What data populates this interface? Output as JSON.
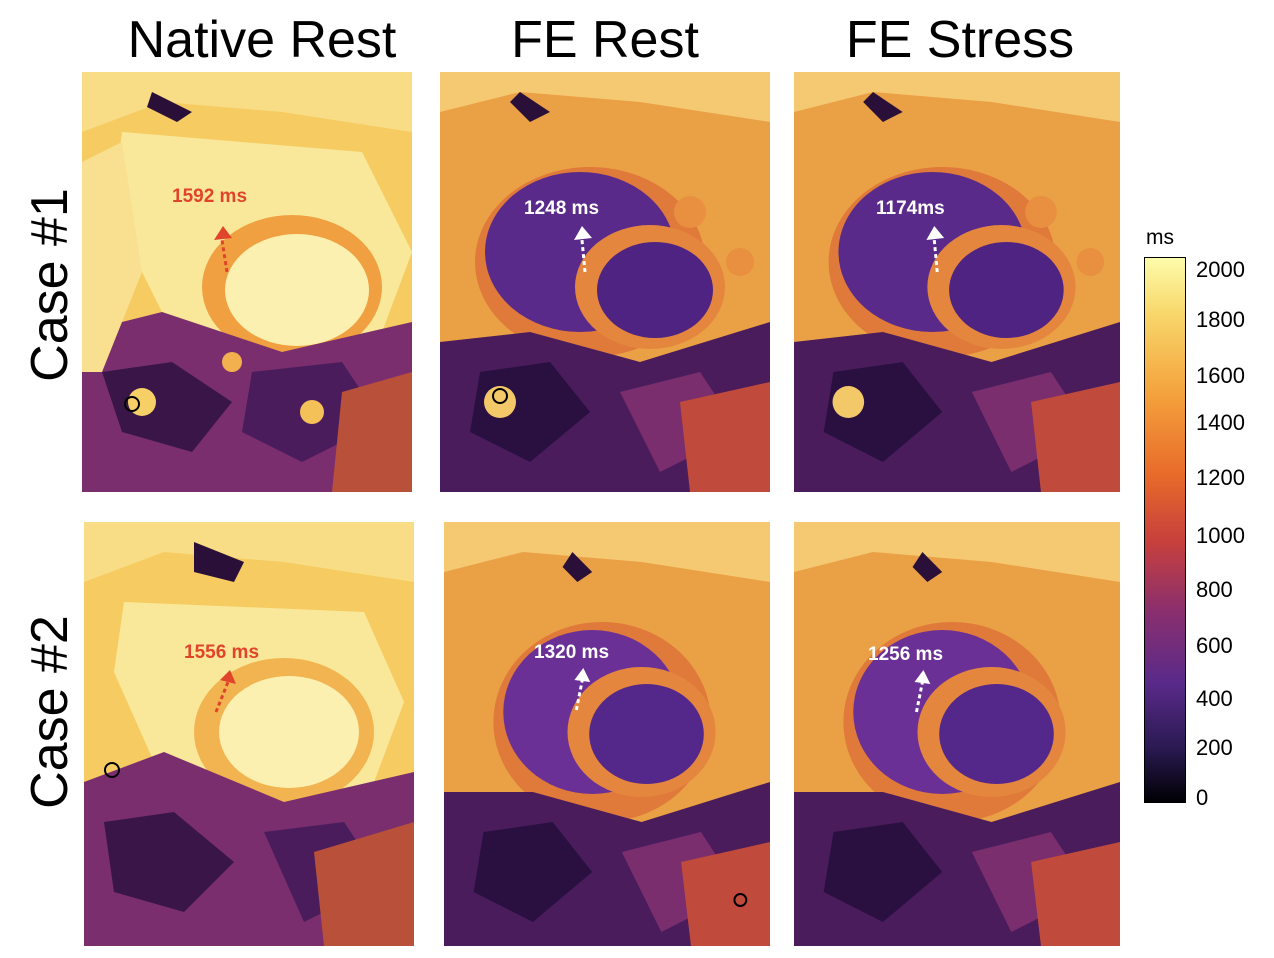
{
  "columns": [
    "Native Rest",
    "FE Rest",
    "FE Stress"
  ],
  "rows": [
    "Case #1",
    "Case #2"
  ],
  "measurements": {
    "case1": {
      "native_rest": "1592 ms",
      "fe_rest": "1248 ms",
      "fe_stress": "1174ms"
    },
    "case2": {
      "native_rest": "1556 ms",
      "fe_rest": "1320 ms",
      "fe_stress": "1256 ms"
    }
  },
  "colorbar": {
    "unit": "ms",
    "ticks": [
      "2000",
      "1800",
      "1600",
      "1400",
      "1200",
      "1000",
      "800",
      "600",
      "400",
      "200",
      "0"
    ]
  },
  "colors": {
    "native_label": "#e0442a",
    "fe_label": "#ffffff"
  }
}
